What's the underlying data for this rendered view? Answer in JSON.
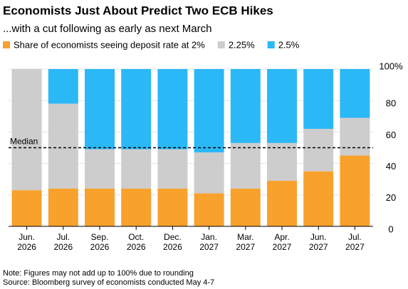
{
  "chart_data": {
    "type": "stacked_bar",
    "title": "Economists Just About Predict Two ECB Hikes",
    "subtitle": "...with a cut following as early as next March",
    "categories": [
      [
        "Jun.",
        "2026"
      ],
      [
        "Jul.",
        "2026"
      ],
      [
        "Sep.",
        "2026"
      ],
      [
        "Oct.",
        "2026"
      ],
      [
        "Dec.",
        "2026"
      ],
      [
        "Jan.",
        "2027"
      ],
      [
        "Mar.",
        "2027"
      ],
      [
        "Apr.",
        "2027"
      ],
      [
        "Jun.",
        "2027"
      ],
      [
        "Jul.",
        "2027"
      ]
    ],
    "series": [
      {
        "name": "Share of economists seeing deposit rate at 2%",
        "color": "#f9a12d",
        "values": [
          23,
          24,
          24,
          24,
          24,
          21,
          24,
          29,
          35,
          45
        ]
      },
      {
        "name": "2.25%",
        "color": "#cdcdcd",
        "values": [
          77,
          54,
          25,
          25,
          25,
          26,
          29,
          24,
          27,
          24
        ]
      },
      {
        "name": "2.5%",
        "color": "#2bb8f7",
        "values": [
          0,
          22,
          51,
          51,
          51,
          53,
          47,
          47,
          38,
          31
        ]
      }
    ],
    "ylim": [
      0,
      100
    ],
    "yticks": [
      0,
      20,
      40,
      60,
      80,
      {
        "value": 100,
        "label": "100%"
      }
    ],
    "grid": true,
    "median_line": {
      "label": "Median",
      "value": 50
    },
    "notes": [
      "Note: Figures may not add up to 100% due to rounding",
      "Source: Bloomberg survey of economists conducted May 4-7"
    ]
  }
}
